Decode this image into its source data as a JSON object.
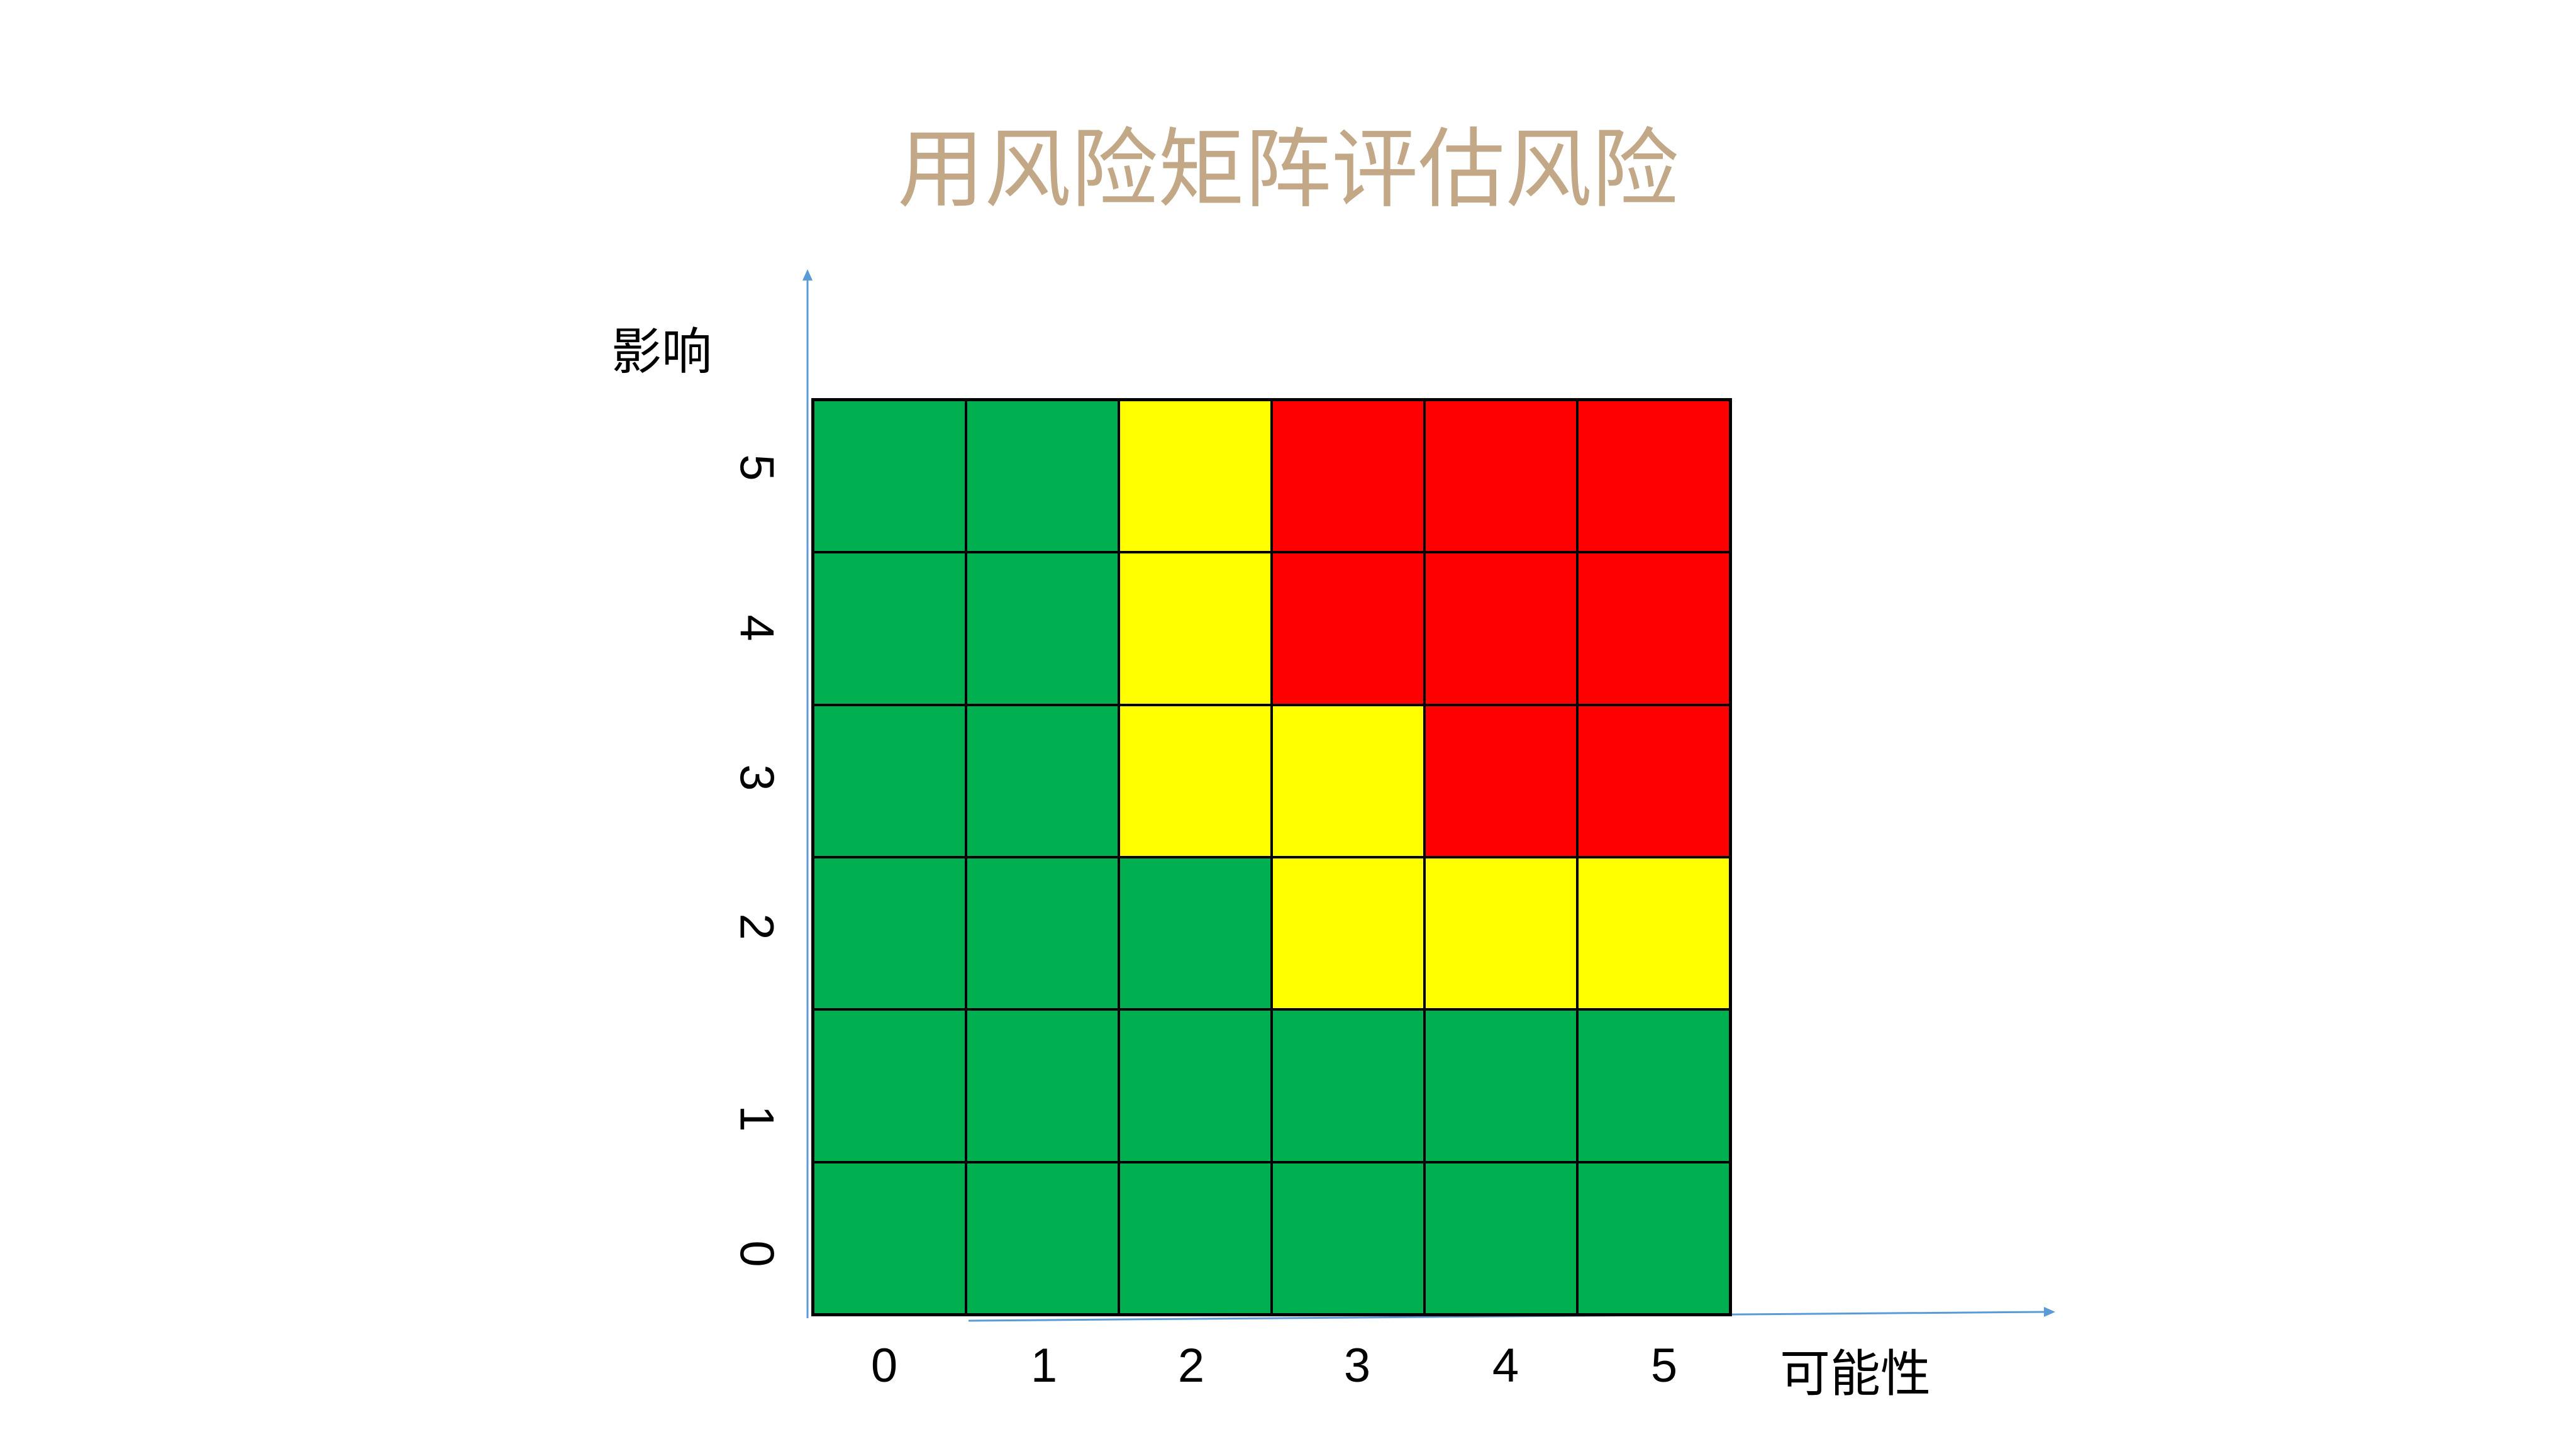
{
  "slide": {
    "title": "用风险矩阵评估风险",
    "title_color": "#c2a887"
  },
  "axes": {
    "y_label": "影响",
    "x_label": "可能性",
    "x_ticks": [
      "0",
      "1",
      "2",
      "3",
      "4",
      "5"
    ],
    "y_ticks": [
      "0",
      "1",
      "2",
      "3",
      "4",
      "5"
    ],
    "axis_color": "#5b9bd5"
  },
  "colors": {
    "green": "#00b050",
    "yellow": "#ffff00",
    "red": "#ff0000"
  },
  "matrix": {
    "rows": [
      {
        "impact": "5",
        "cells": [
          "green",
          "green",
          "yellow",
          "red",
          "red",
          "red"
        ]
      },
      {
        "impact": "4",
        "cells": [
          "green",
          "green",
          "yellow",
          "red",
          "red",
          "red"
        ]
      },
      {
        "impact": "3",
        "cells": [
          "green",
          "green",
          "yellow",
          "yellow",
          "red",
          "red"
        ]
      },
      {
        "impact": "2",
        "cells": [
          "green",
          "green",
          "green",
          "yellow",
          "yellow",
          "yellow"
        ]
      },
      {
        "impact": "1",
        "cells": [
          "green",
          "green",
          "green",
          "green",
          "green",
          "green"
        ]
      },
      {
        "impact": "0",
        "cells": [
          "green",
          "green",
          "green",
          "green",
          "green",
          "green"
        ]
      }
    ]
  }
}
